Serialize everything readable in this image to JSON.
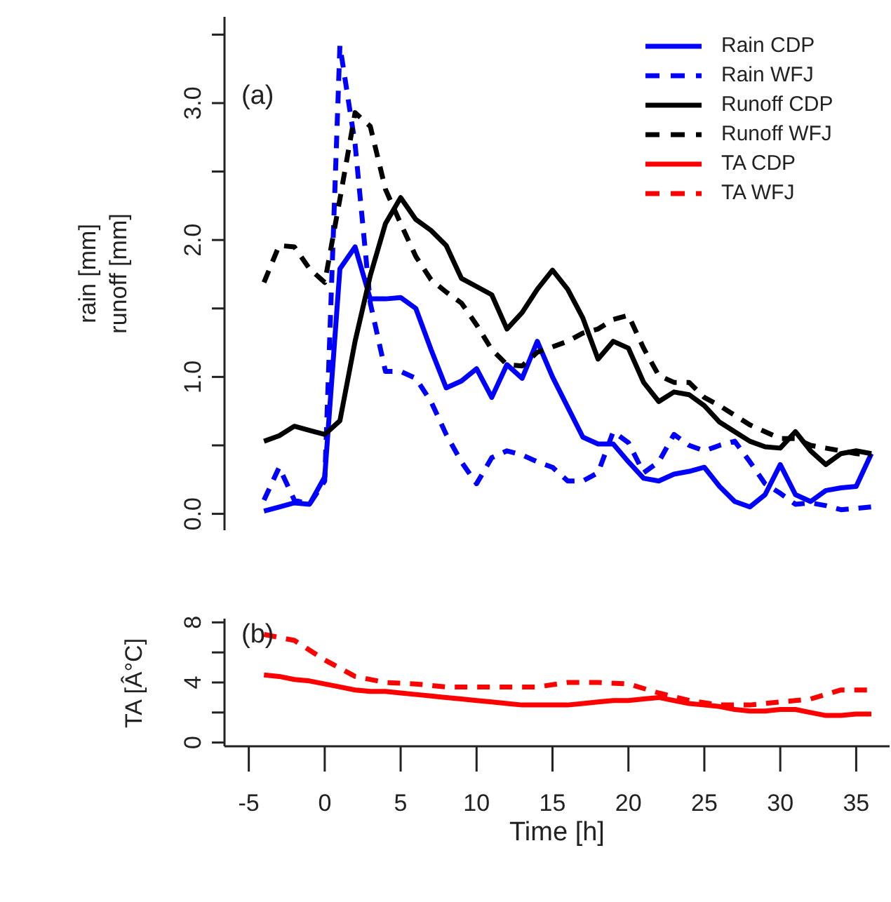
{
  "chart_data": [
    {
      "type": "line",
      "ylabel": "rain [mm]\nrunoff [mm]",
      "annotations": [
        "(a)"
      ],
      "legend": "top right",
      "tick_labels": "y",
      "xlim": [
        -6.6,
        37.2
      ],
      "ylim": [
        -0.12,
        3.63
      ],
      "yticks": [
        {
          "value": 0,
          "label": "0.0"
        },
        {
          "value": 0.5,
          "label": null
        },
        {
          "value": 1,
          "label": "1.0"
        },
        {
          "value": 1.5,
          "label": null
        },
        {
          "value": 2,
          "label": "2.0"
        },
        {
          "value": 2.5,
          "label": null
        },
        {
          "value": 3,
          "label": "3.0"
        },
        {
          "value": 3.5,
          "label": null
        }
      ],
      "x": [
        -4,
        -3,
        -2,
        -1,
        0,
        1,
        2,
        3,
        4,
        5,
        6,
        7,
        8,
        9,
        10,
        11,
        12,
        13,
        14,
        15,
        16,
        17,
        18,
        19,
        20,
        21,
        22,
        23,
        24,
        25,
        26,
        27,
        28,
        29,
        30,
        31,
        32,
        33,
        34,
        35,
        36
      ],
      "series": [
        {
          "name": "Rain CDP",
          "color": "#0000ff",
          "line_style": "solid",
          "values": [
            0.02,
            0.05,
            0.08,
            0.07,
            0.27,
            1.79,
            1.95,
            1.57,
            1.57,
            1.58,
            1.5,
            1.2,
            0.92,
            0.97,
            1.06,
            0.85,
            1.09,
            0.99,
            1.26,
            1.0,
            0.78,
            0.56,
            0.51,
            0.51,
            0.38,
            0.26,
            0.24,
            0.29,
            0.31,
            0.34,
            0.2,
            0.09,
            0.05,
            0.14,
            0.36,
            0.14,
            0.09,
            0.17,
            0.19,
            0.2,
            0.44
          ]
        },
        {
          "name": "Rain WFJ",
          "color": "#0000ff",
          "line_style": "dashed",
          "values": [
            0.1,
            0.34,
            0.1,
            0.07,
            0.24,
            3.42,
            2.7,
            1.54,
            1.04,
            1.04,
            0.99,
            0.82,
            0.58,
            0.38,
            0.22,
            0.41,
            0.46,
            0.43,
            0.38,
            0.34,
            0.24,
            0.24,
            0.3,
            0.6,
            0.52,
            0.3,
            0.38,
            0.58,
            0.5,
            0.46,
            0.5,
            0.53,
            0.38,
            0.22,
            0.15,
            0.07,
            0.08,
            0.06,
            0.03,
            0.04,
            0.05
          ]
        },
        {
          "name": "Runoff CDP",
          "color": "#000000",
          "line_style": "solid",
          "values": [
            0.53,
            0.57,
            0.64,
            0.61,
            0.58,
            0.68,
            1.26,
            1.74,
            2.12,
            2.31,
            2.15,
            2.07,
            1.96,
            1.72,
            1.66,
            1.6,
            1.35,
            1.47,
            1.64,
            1.78,
            1.64,
            1.43,
            1.13,
            1.26,
            1.21,
            0.96,
            0.82,
            0.89,
            0.87,
            0.79,
            0.67,
            0.6,
            0.53,
            0.49,
            0.48,
            0.6,
            0.46,
            0.36,
            0.44,
            0.46,
            0.44
          ]
        },
        {
          "name": "Runoff WFJ",
          "color": "#000000",
          "line_style": "dashed",
          "values": [
            1.69,
            1.96,
            1.95,
            1.79,
            1.69,
            2.3,
            2.93,
            2.83,
            2.37,
            2.12,
            1.88,
            1.71,
            1.62,
            1.54,
            1.38,
            1.2,
            1.09,
            1.08,
            1.18,
            1.22,
            1.26,
            1.32,
            1.35,
            1.42,
            1.45,
            1.21,
            1.01,
            0.96,
            0.96,
            0.85,
            0.79,
            0.72,
            0.65,
            0.6,
            0.55,
            0.55,
            0.5,
            0.48,
            0.46,
            0.44,
            0.43
          ]
        }
      ]
    },
    {
      "type": "line",
      "xlabel": "Time [h]",
      "ylabel": "TA [Â°C]",
      "annotations": [
        "(b)"
      ],
      "legend": "top right",
      "xlim": [
        -6.6,
        37.2
      ],
      "ylim": [
        -0.25,
        8.25
      ],
      "xticks": [
        -5,
        0,
        5,
        10,
        15,
        20,
        25,
        30,
        35
      ],
      "yticks": [
        0,
        {
          "value": 2,
          "label": null
        },
        4,
        {
          "value": 6,
          "label": null
        },
        8
      ],
      "series": [
        {
          "name": "TA CDP",
          "color": "#ff0000",
          "line_style": "solid",
          "x": [
            -4,
            -3,
            -2,
            -1,
            0,
            1,
            2,
            3,
            4,
            5,
            6,
            7,
            8,
            9,
            10,
            11,
            12,
            13,
            14,
            15,
            16,
            17,
            18,
            19,
            20,
            21,
            22,
            23,
            24,
            25,
            26,
            27,
            28,
            29,
            30,
            31,
            32,
            33,
            34,
            35,
            36
          ],
          "values": [
            4.5,
            4.4,
            4.2,
            4.1,
            3.9,
            3.7,
            3.5,
            3.4,
            3.4,
            3.3,
            3.2,
            3.1,
            3.0,
            2.9,
            2.8,
            2.7,
            2.6,
            2.5,
            2.5,
            2.5,
            2.5,
            2.6,
            2.7,
            2.8,
            2.8,
            2.9,
            3.0,
            2.8,
            2.6,
            2.5,
            2.4,
            2.2,
            2.1,
            2.1,
            2.2,
            2.2,
            2.0,
            1.8,
            1.8,
            1.9,
            1.9
          ]
        },
        {
          "name": "TA WFJ",
          "color": "#ff0000",
          "line_style": "dashed",
          "x": [
            -4,
            -2,
            0,
            2,
            4,
            6,
            8,
            10,
            12,
            14,
            16,
            18,
            20,
            22,
            24,
            26,
            28,
            30,
            32,
            34,
            36
          ],
          "values": [
            7.2,
            6.8,
            5.5,
            4.4,
            4.0,
            3.9,
            3.7,
            3.7,
            3.7,
            3.7,
            4.0,
            4.0,
            3.9,
            3.3,
            2.8,
            2.5,
            2.5,
            2.7,
            2.9,
            3.5,
            3.5
          ]
        }
      ]
    }
  ]
}
